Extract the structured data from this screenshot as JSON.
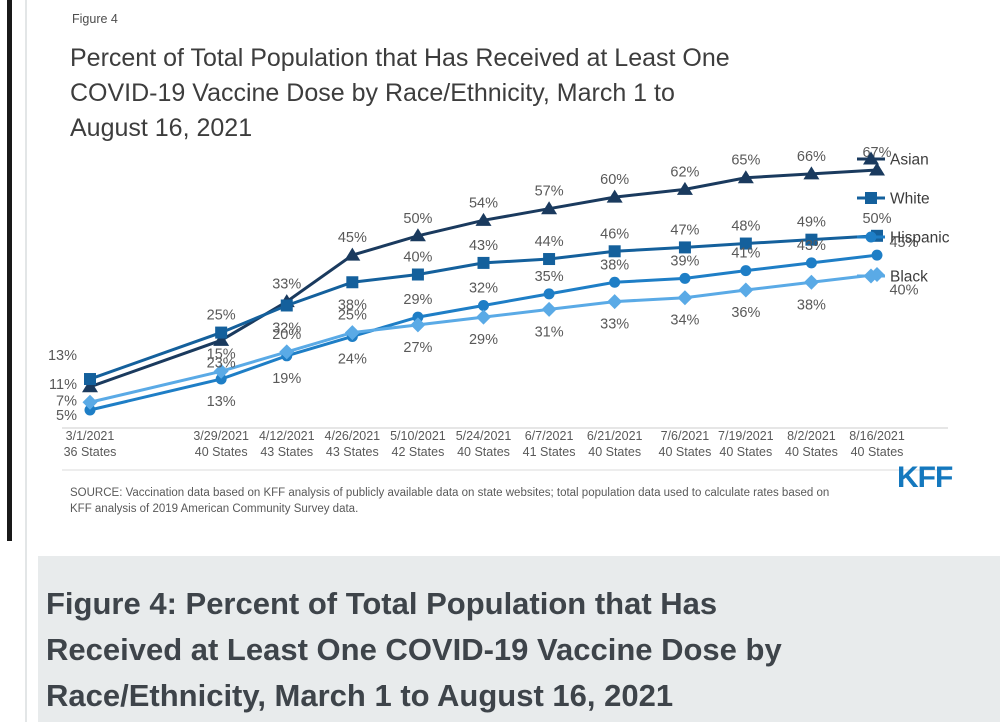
{
  "figure": {
    "label": "Figure 4",
    "title_lines": [
      "Percent of Total Population that Has Received at Least One",
      "COVID-19 Vaccine Dose by Race/Ethnicity, March 1 to",
      "August 16, 2021"
    ],
    "source_lines": [
      "SOURCE: Vaccination data based on KFF analysis of publicly available data on state websites; total population data used to calculate rates based on",
      "KFF analysis of 2019 American Community Survey data."
    ],
    "logo": "KFF"
  },
  "chart_data": {
    "type": "line",
    "title": "Percent of Total Population that Has Received at Least One COVID-19 Vaccine Dose by Race/Ethnicity, March 1 to August 16, 2021",
    "x": [
      {
        "date": "3/1/2021",
        "states": "36 States"
      },
      {
        "date": "3/29/2021",
        "states": "40 States"
      },
      {
        "date": "4/12/2021",
        "states": "43 States"
      },
      {
        "date": "4/26/2021",
        "states": "43 States"
      },
      {
        "date": "5/10/2021",
        "states": "42 States"
      },
      {
        "date": "5/24/2021",
        "states": "40 States"
      },
      {
        "date": "6/7/2021",
        "states": "41 States"
      },
      {
        "date": "6/21/2021",
        "states": "40 States"
      },
      {
        "date": "7/6/2021",
        "states": "40 States"
      },
      {
        "date": "7/19/2021",
        "states": "40 States"
      },
      {
        "date": "8/2/2021",
        "states": "40 States"
      },
      {
        "date": "8/16/2021",
        "states": "40 States"
      }
    ],
    "series": [
      {
        "name": "Asian",
        "marker": "triangle",
        "color": "#1a3a5e",
        "values": [
          11,
          23,
          33,
          45,
          50,
          54,
          57,
          60,
          62,
          65,
          66,
          67
        ]
      },
      {
        "name": "White",
        "marker": "square",
        "color": "#14609c",
        "values": [
          13,
          25,
          32,
          38,
          40,
          43,
          44,
          46,
          47,
          48,
          49,
          50
        ]
      },
      {
        "name": "Hispanic",
        "marker": "circle",
        "color": "#1e7ec6",
        "values": [
          5,
          13,
          19,
          24,
          29,
          32,
          35,
          38,
          39,
          41,
          43,
          45
        ]
      },
      {
        "name": "Black",
        "marker": "diamond",
        "color": "#5aaae6",
        "values": [
          7,
          15,
          20,
          25,
          27,
          29,
          31,
          33,
          34,
          36,
          38,
          40
        ]
      }
    ],
    "value_suffix": "%",
    "ylim": [
      0,
      70
    ],
    "grid": false,
    "legend_position": "right",
    "data_label_color": "#595959",
    "axis_label_color": "#595959",
    "legend_text_color": "#3c3c3c"
  },
  "caption": {
    "lines": [
      "Figure 4: Percent of Total Population that Has",
      "Received at Least One COVID-19 Vaccine Dose by",
      "Race/Ethnicity, March 1 to August 16, 2021"
    ]
  }
}
